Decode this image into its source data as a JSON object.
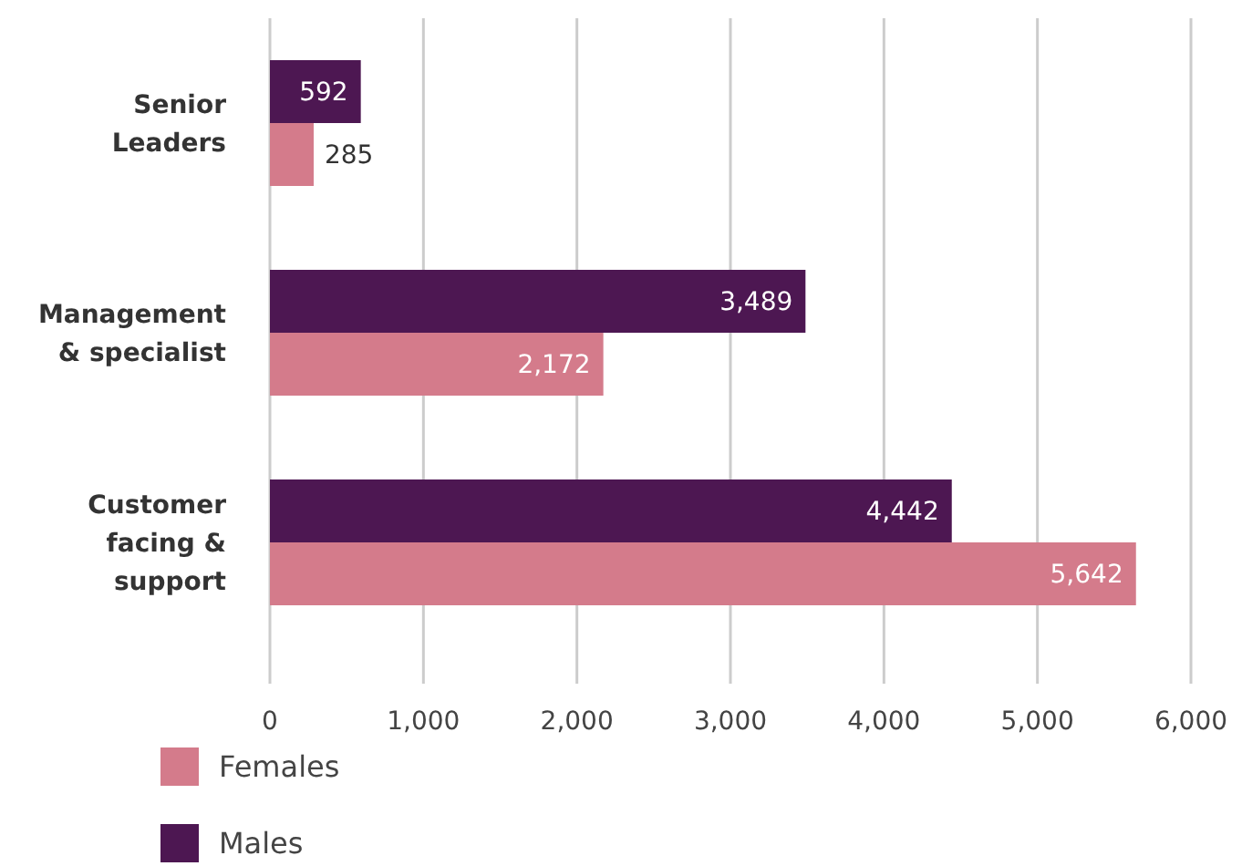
{
  "chart_data": {
    "type": "bar",
    "orientation": "horizontal",
    "categories": [
      "Senior\nLeaders",
      "Management\n& specialist",
      "Customer\nfacing &\nsupport"
    ],
    "series": [
      {
        "name": "Females",
        "color": "#d47b8b",
        "values": [
          285,
          2172,
          5642
        ],
        "value_labels": [
          "285",
          "2,172",
          "5,642"
        ]
      },
      {
        "name": "Males",
        "color": "#4d1752",
        "values": [
          592,
          3489,
          4442
        ],
        "value_labels": [
          "592",
          "3,489",
          "4,442"
        ]
      }
    ],
    "xlim": [
      0,
      6000
    ],
    "xticks": [
      {
        "value": 0,
        "label": "0"
      },
      {
        "value": 1000,
        "label": "1,000"
      },
      {
        "value": 2000,
        "label": "2,000"
      },
      {
        "value": 3000,
        "label": "3,000"
      },
      {
        "value": 4000,
        "label": "4,000"
      },
      {
        "value": 5000,
        "label": "5,000"
      },
      {
        "value": 6000,
        "label": "6,000"
      }
    ],
    "grid": "x",
    "legend": "bottom left"
  }
}
